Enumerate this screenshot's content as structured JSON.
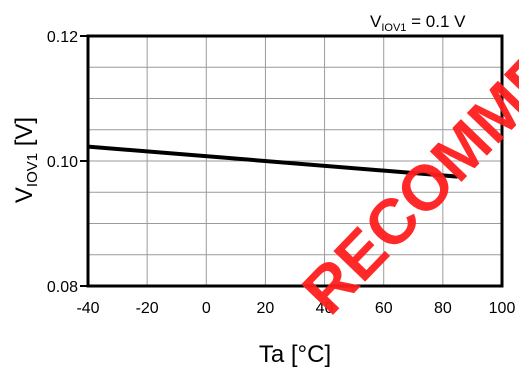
{
  "chart_data": {
    "type": "line",
    "condition": {
      "main": "V",
      "sub": "IOV1",
      "rest": " = 0.1 V"
    },
    "xlabel": "Ta [°C]",
    "ylabel": {
      "main": "V",
      "sub": "IOV1",
      "rest": " [V]"
    },
    "xlim": [
      -40,
      100
    ],
    "ylim": [
      0.08,
      0.12
    ],
    "xticks": [
      -40,
      -20,
      0,
      20,
      40,
      60,
      80,
      100
    ],
    "xtick_labels": [
      "-40",
      "-20",
      "0",
      "20",
      "40",
      "60",
      "80",
      "100"
    ],
    "yticks": [
      0.08,
      0.1,
      0.12
    ],
    "ytick_labels": [
      "0.08",
      "0.10",
      "0.12"
    ],
    "grid": true,
    "series": [
      {
        "x": [
          -40,
          85
        ],
        "y": [
          0.1023,
          0.0975
        ]
      }
    ]
  },
  "watermark": {
    "text": "RECOMMEND",
    "color": "#ff1e1e"
  }
}
